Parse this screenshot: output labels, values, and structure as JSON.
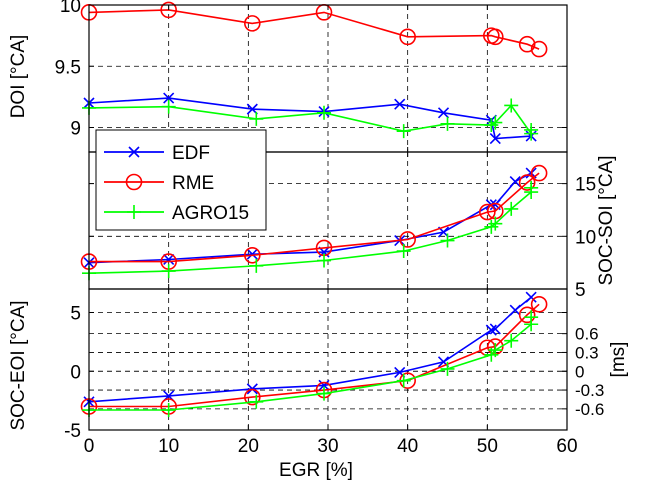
{
  "figure": {
    "xlabel": "EGR [%]",
    "x_ticks": [
      "0",
      "10",
      "20",
      "30",
      "40",
      "50",
      "60"
    ],
    "xlim": [
      0,
      60
    ]
  },
  "legend": {
    "entries": [
      {
        "label": "EDF",
        "color": "#0000ff",
        "marker": "x"
      },
      {
        "label": "RME",
        "color": "#ff0000",
        "marker": "o"
      },
      {
        "label": "AGRO15",
        "color": "#00ff00",
        "marker": "+"
      }
    ],
    "placement": "inside top-left of middle panel"
  },
  "chart_data": [
    {
      "type": "line",
      "panel": "top",
      "ylabel": "DOI [°CA]",
      "ylim": [
        8.8,
        10
      ],
      "y_ticks": [
        "9",
        "9.5",
        "10"
      ],
      "y_tick_values": [
        9,
        9.5,
        10
      ],
      "grid": true,
      "series": [
        {
          "name": "EDF",
          "x": [
            0,
            10,
            20.5,
            29.5,
            39,
            44.5,
            50.5,
            51,
            55.5
          ],
          "y": [
            9.2,
            9.24,
            9.15,
            9.13,
            9.19,
            9.12,
            9.06,
            8.91,
            8.93
          ]
        },
        {
          "name": "RME",
          "x": [
            0,
            10,
            20.5,
            29.5,
            40,
            50.5,
            51,
            55,
            56.5
          ],
          "y": [
            9.94,
            9.96,
            9.85,
            9.94,
            9.74,
            9.75,
            9.74,
            9.68,
            9.64
          ]
        },
        {
          "name": "AGRO15",
          "x": [
            0,
            10,
            21,
            29.5,
            39.5,
            45,
            50.5,
            51,
            53,
            55.5,
            55.5
          ],
          "y": [
            9.16,
            9.17,
            9.07,
            9.12,
            8.97,
            9.03,
            9.02,
            9.04,
            9.18,
            8.95,
            8.98
          ]
        }
      ]
    },
    {
      "type": "line",
      "panel": "middle",
      "ylabel": "SOC-SOI [°CA]",
      "ylim": [
        5,
        18
      ],
      "y_ticks": [
        "5",
        "10",
        "15"
      ],
      "y_tick_values": [
        5,
        10,
        15
      ],
      "y_axis_side": "right",
      "grid": true,
      "series": [
        {
          "name": "EDF",
          "x": [
            0,
            10,
            20.5,
            29.5,
            39,
            44.5,
            50.5,
            51,
            53.5,
            55.5
          ],
          "y": [
            7.5,
            7.8,
            8.3,
            8.5,
            9.6,
            10.4,
            13.0,
            13.0,
            15.2,
            16.0
          ]
        },
        {
          "name": "RME",
          "x": [
            0,
            10,
            20.5,
            29.5,
            40,
            50,
            51,
            55,
            56.5
          ],
          "y": [
            7.6,
            7.6,
            8.2,
            8.9,
            9.7,
            12.3,
            12.4,
            15.1,
            16.0
          ]
        },
        {
          "name": "AGRO15",
          "x": [
            0,
            10,
            21,
            29.5,
            39.5,
            45,
            50.5,
            51,
            53,
            55.5,
            55.5
          ],
          "y": [
            6.5,
            6.7,
            7.2,
            7.7,
            8.6,
            9.6,
            10.9,
            11.2,
            12.6,
            14.2,
            14.6
          ]
        }
      ]
    },
    {
      "type": "line",
      "panel": "bottom",
      "ylabel": "SOC-EOI [°CA]",
      "ylim": [
        -5,
        7
      ],
      "y_ticks": [
        "-5",
        "0",
        "5"
      ],
      "y_tick_values": [
        -5,
        0,
        5
      ],
      "ylabel_right": "[ms]",
      "y_ticks_right": [
        "-0.6",
        "-0.3",
        "0",
        "0.3",
        "0.6"
      ],
      "y_tick_values_right": [
        -3.2,
        -1.6,
        0,
        1.6,
        3.2
      ],
      "grid": true,
      "series": [
        {
          "name": "EDF",
          "x": [
            0,
            10,
            20.5,
            29.5,
            39,
            44.5,
            50.5,
            51,
            53.5,
            55.5
          ],
          "y": [
            -2.6,
            -2.1,
            -1.5,
            -1.2,
            -0.1,
            0.8,
            3.5,
            3.6,
            5.2,
            6.3
          ]
        },
        {
          "name": "RME",
          "x": [
            0,
            10,
            20.5,
            29.5,
            40,
            50,
            51,
            55,
            56.5
          ],
          "y": [
            -3.0,
            -3.0,
            -2.2,
            -1.6,
            -0.8,
            2.0,
            2.1,
            4.8,
            5.7
          ]
        },
        {
          "name": "AGRO15",
          "x": [
            0,
            10,
            21,
            29.5,
            39.5,
            45,
            50.5,
            51,
            53,
            55.5,
            55.5
          ],
          "y": [
            -3.3,
            -3.3,
            -2.6,
            -1.9,
            -0.8,
            0.2,
            1.4,
            1.8,
            2.6,
            4.0,
            4.6
          ]
        }
      ]
    }
  ]
}
